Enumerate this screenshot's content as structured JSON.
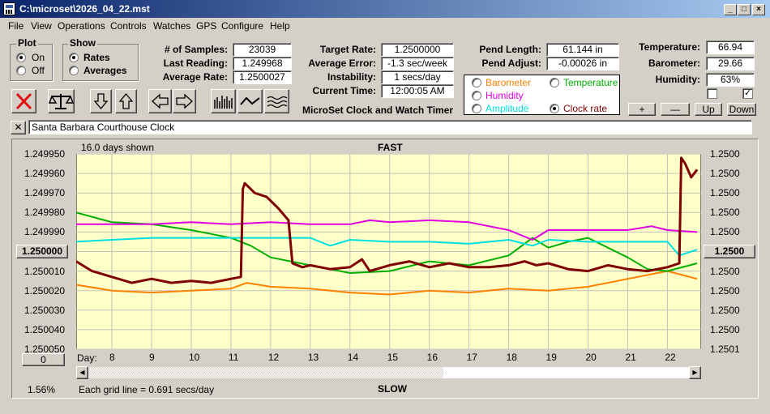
{
  "window": {
    "title": "C:\\microset\\2026_04_22.mst"
  },
  "menu": [
    "File",
    "View",
    "Operations",
    "Controls",
    "Watches",
    "GPS",
    "Configure",
    "Help"
  ],
  "plot_group": {
    "title": "Plot",
    "on": "On",
    "off": "Off",
    "selected": "on"
  },
  "show_group": {
    "title": "Show",
    "rates": "Rates",
    "averages": "Averages",
    "selected": "rates"
  },
  "stats": {
    "samples_label": "# of Samples:",
    "samples": "23039",
    "last_label": "Last Reading:",
    "last": "1.249968",
    "avg_label": "Average Rate:",
    "avg": "1.2500027",
    "target_label": "Target Rate:",
    "target": "1.2500000",
    "err_label": "Average Error:",
    "err": "-1.3 sec/week",
    "inst_label": "Instability:",
    "inst": "1 secs/day",
    "time_label": "Current Time:",
    "time": "12:00:05 AM",
    "pend_len_label": "Pend Length:",
    "pend_len": "61.144 in",
    "pend_adj_label": "Pend Adjust:",
    "pend_adj": "-0.00026 in",
    "temp_label": "Temperature:",
    "temp": "66.94",
    "baro_label": "Barometer:",
    "baro": "29.66",
    "hum_label": "Humidity:",
    "hum": "63%"
  },
  "subtitle": "MicroSet Clock and Watch Timer",
  "series_options": {
    "barometer": "Barometer",
    "temperature": "Temperature",
    "humidity": "Humidity",
    "amplitude": "Amplitude",
    "clock_rate": "Clock rate",
    "selected": "clock_rate"
  },
  "adjust_buttons": {
    "plus": "+",
    "minus": "—",
    "up": "Up",
    "down": "Down"
  },
  "clock_name": "Santa Barbara Courthouse Clock",
  "chart_header": {
    "days_shown": "16.0 days shown",
    "fast": "FAST",
    "slow": "SLOW"
  },
  "chart_footer": {
    "grid_note": "Each grid line = 0.691 secs/day",
    "zoom": "1.56%",
    "day_label": "Day:",
    "left_btn": "0"
  },
  "colors": {
    "clock_rate": "#800000",
    "barometer": "#ff8000",
    "temperature": "#00b000",
    "humidity": "#e000e0",
    "amplitude": "#00e0e0",
    "plot_bg": "#ffffc8",
    "grid": "#c0c0c0"
  },
  "chart_data": {
    "type": "line",
    "xlabel": "Day:",
    "x_ticks": [
      "8",
      "9",
      "10",
      "11",
      "12",
      "13",
      "14",
      "15",
      "16",
      "17",
      "18",
      "19",
      "20",
      "21",
      "22"
    ],
    "xlim": [
      7.1,
      22.85
    ],
    "left_ticks": [
      "1.249950",
      "1.249960",
      "1.249970",
      "1.249980",
      "1.249990",
      "1.250000",
      "1.250010",
      "1.250020",
      "1.250030",
      "1.250040",
      "1.250050"
    ],
    "right_ticks": [
      "1.2500",
      "1.2500",
      "1.2500",
      "1.2500",
      "1.2500",
      "1.2500",
      "1.2500",
      "1.2500",
      "1.2500",
      "1.2500",
      "1.2501"
    ],
    "ylim": [
      1.24995,
      1.25005
    ],
    "y_reversed": true,
    "center_value": "1.250000",
    "center_value_right": "1.2500",
    "series": [
      {
        "key": "clock_rate",
        "name": "Clock rate",
        "x": [
          7.1,
          7.5,
          8.0,
          8.5,
          9.0,
          9.5,
          10.0,
          10.5,
          11.0,
          11.25,
          11.3,
          11.35,
          11.6,
          11.9,
          12.2,
          12.45,
          12.55,
          12.8,
          13.0,
          13.5,
          14.0,
          14.3,
          14.5,
          15.0,
          15.5,
          16.0,
          16.5,
          17.0,
          17.5,
          18.0,
          18.4,
          18.7,
          19.0,
          19.5,
          20.0,
          20.5,
          21.0,
          21.5,
          22.0,
          22.3,
          22.35,
          22.45,
          22.6,
          22.75
        ],
        "y": [
          1.250005,
          1.25001,
          1.250013,
          1.250016,
          1.250014,
          1.250016,
          1.250015,
          1.250016,
          1.250014,
          1.250013,
          1.249968,
          1.249965,
          1.24997,
          1.249972,
          1.249978,
          1.249984,
          1.250006,
          1.250008,
          1.250007,
          1.250009,
          1.250008,
          1.250004,
          1.25001,
          1.250007,
          1.250005,
          1.250008,
          1.250006,
          1.250008,
          1.250008,
          1.250007,
          1.250005,
          1.250007,
          1.250006,
          1.250009,
          1.25001,
          1.250007,
          1.250009,
          1.25001,
          1.250008,
          1.250006,
          1.249952,
          1.249955,
          1.249962,
          1.249958
        ]
      },
      {
        "key": "barometer",
        "name": "Barometer",
        "x": [
          7.1,
          8.0,
          9.0,
          10.0,
          11.0,
          11.4,
          12.0,
          13.0,
          14.0,
          15.0,
          16.0,
          17.0,
          18.0,
          19.0,
          20.0,
          21.0,
          22.0,
          22.75
        ],
        "y": [
          1.250017,
          1.25002,
          1.250021,
          1.25002,
          1.250019,
          1.250016,
          1.250018,
          1.250019,
          1.250021,
          1.250022,
          1.25002,
          1.250021,
          1.250019,
          1.25002,
          1.250018,
          1.250014,
          1.25001,
          1.250014
        ]
      },
      {
        "key": "temperature",
        "name": "Temperature",
        "x": [
          7.1,
          8.0,
          9.0,
          10.0,
          10.5,
          11.0,
          11.5,
          12.0,
          13.0,
          14.0,
          15.0,
          16.0,
          17.0,
          18.0,
          18.6,
          19.0,
          19.5,
          20.0,
          20.5,
          21.0,
          21.5,
          22.0,
          22.75
        ],
        "y": [
          1.24998,
          1.249985,
          1.249986,
          1.249989,
          1.249991,
          1.249993,
          1.249997,
          1.250003,
          1.250007,
          1.250011,
          1.25001,
          1.250005,
          1.250007,
          1.250002,
          1.249993,
          1.249998,
          1.249995,
          1.249993,
          1.249998,
          1.250003,
          1.250009,
          1.25001,
          1.250006
        ]
      },
      {
        "key": "humidity",
        "name": "Humidity",
        "x": [
          7.1,
          8.0,
          9.0,
          10.0,
          11.0,
          12.0,
          13.0,
          14.0,
          14.5,
          15.0,
          16.0,
          17.0,
          18.0,
          18.6,
          19.0,
          20.0,
          21.0,
          21.6,
          22.0,
          22.75
        ],
        "y": [
          1.249986,
          1.249986,
          1.249986,
          1.249985,
          1.249986,
          1.249985,
          1.249986,
          1.249986,
          1.249984,
          1.249985,
          1.249984,
          1.249985,
          1.249989,
          1.249994,
          1.249989,
          1.249989,
          1.249989,
          1.249987,
          1.249989,
          1.24999
        ]
      },
      {
        "key": "amplitude",
        "name": "Amplitude",
        "x": [
          7.1,
          8.0,
          9.0,
          10.0,
          11.0,
          12.0,
          13.0,
          13.5,
          14.0,
          15.0,
          16.0,
          17.0,
          18.0,
          18.6,
          19.0,
          20.0,
          21.0,
          22.0,
          22.3,
          22.75
        ],
        "y": [
          1.249995,
          1.249994,
          1.249993,
          1.249993,
          1.249993,
          1.249993,
          1.249993,
          1.249997,
          1.249994,
          1.249995,
          1.249995,
          1.249996,
          1.249994,
          1.249997,
          1.249994,
          1.249995,
          1.249995,
          1.249995,
          1.250002,
          1.249999
        ]
      }
    ]
  }
}
